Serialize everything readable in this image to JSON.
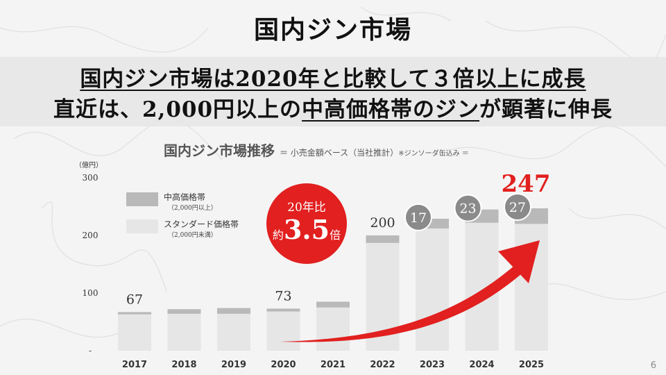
{
  "title": "国内ジン市場",
  "headline": {
    "line1": "国内ジン市場は2020年と比較して３倍以上に成長",
    "line2_pre": "直近は、2,000円以上の",
    "line2_ul": "中高価格帯のジン",
    "line2_post": "が顕著に伸長"
  },
  "subtitle": {
    "main": "国内ジン市場推移",
    "note": "＝ 小売金額ベース（当社推計）",
    "note2": "※ジンソーダ缶込み ＝"
  },
  "legend": {
    "premium_label": "中高価格帯",
    "premium_sub": "（2,000円以上）",
    "standard_label": "スタンダード価格帯",
    "standard_sub": "（2,000円未満）"
  },
  "badge": {
    "line1": "20年比",
    "pre": "約",
    "value": "3.5",
    "post": "倍"
  },
  "page_number": "6",
  "colors": {
    "premium": "#b9b9b9",
    "standard": "#e6e6e6",
    "highlight": "#e1201f",
    "bubble": "#8a8a8a"
  },
  "chart_data": {
    "type": "bar",
    "stacked": true,
    "unit_label": "（億円）",
    "categories": [
      "2017",
      "2018",
      "2019",
      "2020",
      "2021",
      "2022",
      "2023",
      "2024",
      "2025"
    ],
    "series": [
      {
        "name": "スタンダード価格帯",
        "values": [
          63,
          64,
          64,
          68,
          75,
          187,
          212,
          222,
          220
        ]
      },
      {
        "name": "中高価格帯",
        "values": [
          4,
          8,
          10,
          5,
          10,
          13,
          17,
          23,
          27
        ]
      }
    ],
    "totals": [
      67,
      72,
      74,
      73,
      85,
      200,
      229,
      245,
      247
    ],
    "total_labels": [
      "67",
      "",
      "",
      "73",
      "",
      "200",
      "",
      "",
      "247"
    ],
    "premium_labels": [
      "",
      "",
      "",
      "",
      "",
      "",
      "17",
      "23",
      "27"
    ],
    "y_ticks": [
      "-",
      "100",
      "200",
      "300"
    ],
    "y_tick_values": [
      0,
      100,
      200,
      300
    ],
    "ylim": [
      0,
      300
    ]
  }
}
